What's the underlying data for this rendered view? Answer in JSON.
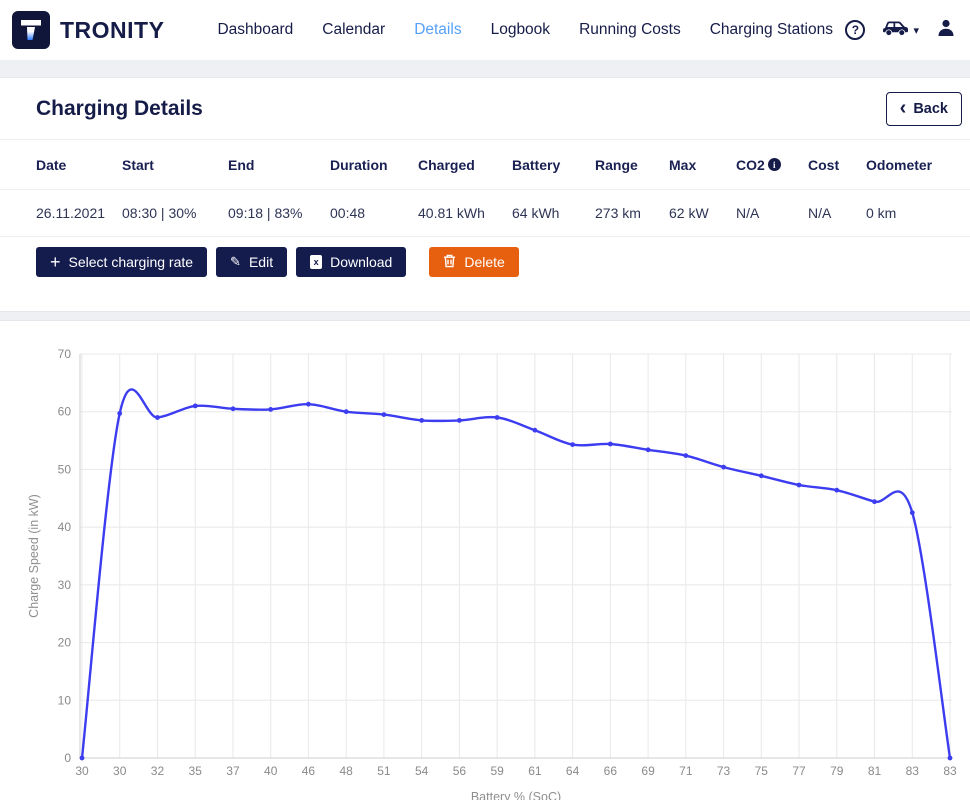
{
  "brand": {
    "name": "TRONITY",
    "logo_letter": "T"
  },
  "nav": {
    "items": [
      {
        "label": "Dashboard",
        "active": false
      },
      {
        "label": "Calendar",
        "active": false
      },
      {
        "label": "Details",
        "active": true
      },
      {
        "label": "Logbook",
        "active": false
      },
      {
        "label": "Running Costs",
        "active": false
      },
      {
        "label": "Charging Stations",
        "active": false
      }
    ]
  },
  "icons": {
    "help": "?",
    "caret": "▾",
    "back_chevron": "‹",
    "plus": "+",
    "edit": "✎",
    "download_x": "x",
    "co2_info": "i"
  },
  "page": {
    "title": "Charging Details",
    "back_label": "Back"
  },
  "table": {
    "columns": [
      "Date",
      "Start",
      "End",
      "Duration",
      "Charged",
      "Battery",
      "Range",
      "Max",
      "CO2",
      "Cost",
      "Odometer"
    ],
    "rows": [
      [
        "26.11.2021",
        "08:30 | 30%",
        "09:18 | 83%",
        "00:48",
        "40.81 kWh",
        "64 kWh",
        "273 km",
        "62 kW",
        "N/A",
        "N/A",
        "0 km"
      ]
    ]
  },
  "actions": {
    "select_rate": "Select charging rate",
    "edit": "Edit",
    "download": "Download",
    "delete": "Delete"
  },
  "colors": {
    "navy": "#161c48",
    "navy_button": "#141b4d",
    "orange": "#e7600f",
    "active_link": "#57a1f8",
    "line": "#3c3cf0",
    "grid": "#e8e8e8",
    "axis": "#cfcfcf",
    "tick_text": "#8a8a8a",
    "page_bg": "#eef0f4"
  },
  "chart_data": {
    "type": "line",
    "title": "",
    "xlabel": "Battery % (SoC)",
    "ylabel": "Charge Speed (in kW)",
    "categories": [
      "30",
      "30",
      "32",
      "35",
      "37",
      "40",
      "46",
      "48",
      "51",
      "54",
      "56",
      "59",
      "61",
      "64",
      "66",
      "69",
      "71",
      "73",
      "75",
      "77",
      "79",
      "81",
      "83",
      "83"
    ],
    "series": [
      {
        "name": "Charge Speed",
        "values": [
          0,
          59.7,
          59.0,
          61.0,
          60.5,
          60.4,
          61.3,
          60.0,
          59.5,
          58.5,
          58.5,
          59.0,
          56.8,
          54.3,
          54.4,
          53.4,
          52.4,
          50.4,
          48.9,
          47.3,
          46.4,
          44.4,
          42.5,
          0
        ]
      }
    ],
    "ylim": [
      0,
      70
    ],
    "yticks": [
      0,
      10,
      20,
      30,
      40,
      50,
      60,
      70
    ],
    "grid": true,
    "legend": "none",
    "line_color": "#3c3cf0"
  }
}
